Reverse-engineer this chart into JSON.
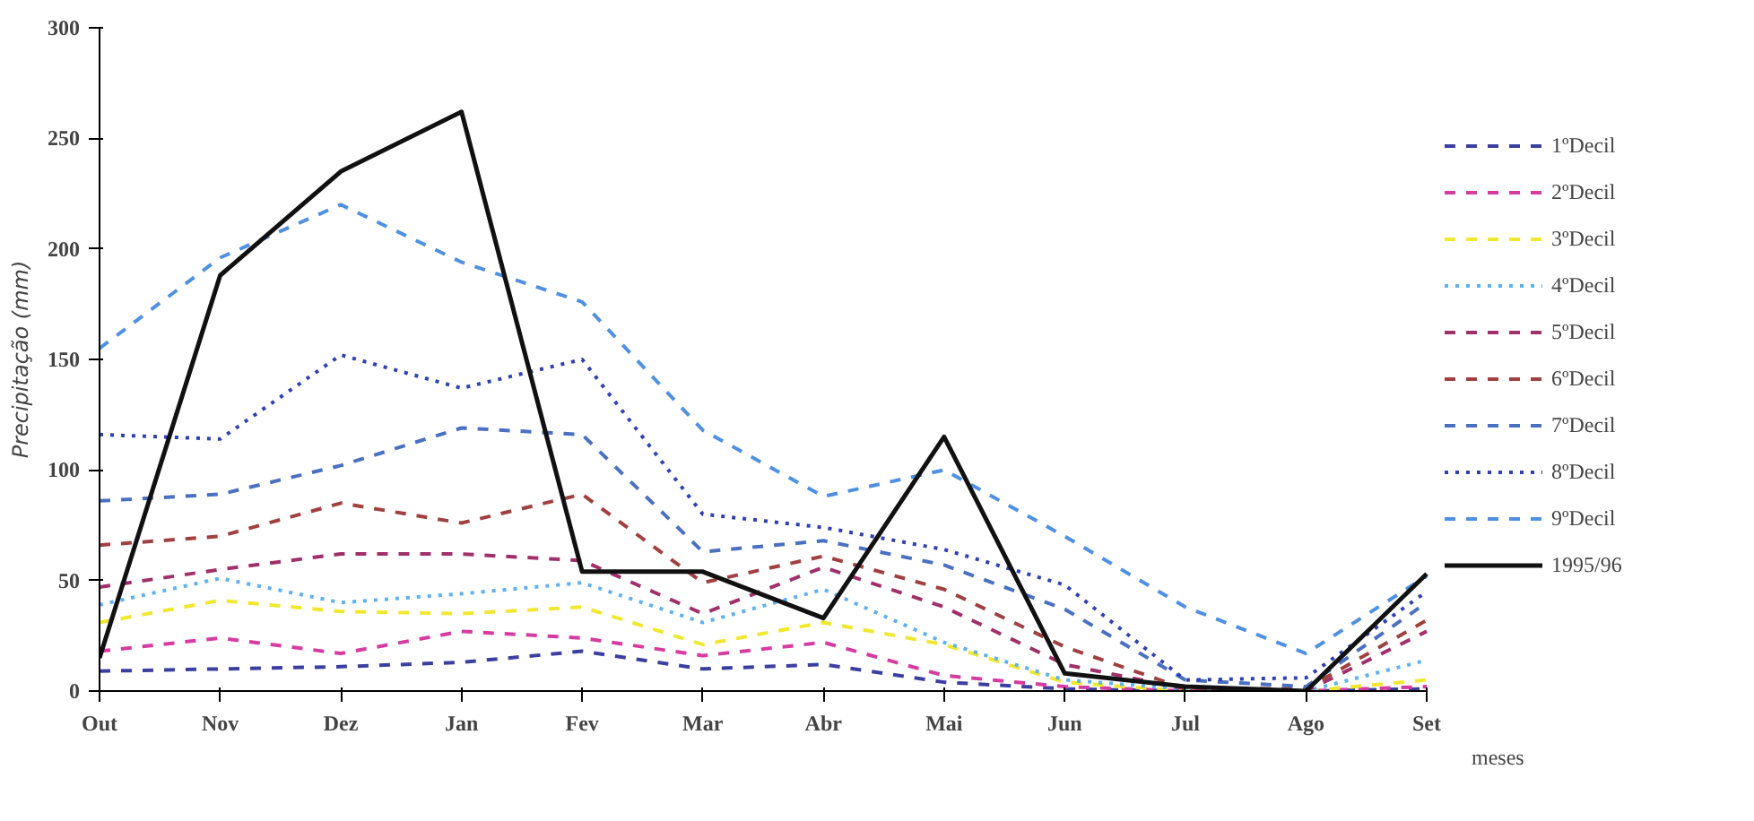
{
  "chart_data": {
    "type": "line",
    "xlabel": "meses",
    "ylabel": "Precipitação (mm)",
    "categories": [
      "Out",
      "Nov",
      "Dez",
      "Jan",
      "Fev",
      "Mar",
      "Abr",
      "Mai",
      "Jun",
      "Jul",
      "Ago",
      "Set"
    ],
    "ylim": [
      0,
      300
    ],
    "yticks": [
      0,
      50,
      100,
      150,
      200,
      250,
      300
    ],
    "grid": false,
    "legend": "right",
    "marker": "none",
    "series": [
      {
        "name": "1ºDecil",
        "color": "#3b3fa0",
        "line_style": "dashed",
        "values": [
          9,
          10,
          11,
          13,
          18,
          10,
          12,
          4,
          1,
          0,
          0,
          1
        ]
      },
      {
        "name": "2ºDecil",
        "color": "#d63ca0",
        "line_style": "dashed",
        "values": [
          18,
          24,
          17,
          27,
          24,
          16,
          22,
          7,
          2,
          0,
          0,
          2
        ]
      },
      {
        "name": "3ºDecil",
        "color": "#f0e830",
        "line_style": "dashed",
        "values": [
          31,
          41,
          36,
          35,
          38,
          21,
          31,
          21,
          4,
          0,
          0,
          5
        ]
      },
      {
        "name": "4ºDecil",
        "color": "#60b0f0",
        "line_style": "dotted",
        "values": [
          39,
          51,
          40,
          44,
          49,
          31,
          46,
          22,
          5,
          1,
          0,
          14
        ]
      },
      {
        "name": "5ºDecil",
        "color": "#a0306a",
        "line_style": "dashed",
        "values": [
          47,
          55,
          62,
          62,
          59,
          35,
          56,
          38,
          12,
          1,
          0,
          27
        ]
      },
      {
        "name": "6ºDecil",
        "color": "#a04040",
        "line_style": "dashed",
        "values": [
          66,
          70,
          85,
          76,
          89,
          49,
          61,
          46,
          20,
          1,
          1,
          32
        ]
      },
      {
        "name": "7ºDecil",
        "color": "#4a70c0",
        "line_style": "dashed",
        "values": [
          86,
          89,
          102,
          119,
          116,
          63,
          68,
          57,
          37,
          5,
          2,
          40
        ]
      },
      {
        "name": "8ºDecil",
        "color": "#3040b0",
        "line_style": "dotted",
        "values": [
          116,
          114,
          152,
          137,
          150,
          80,
          74,
          64,
          48,
          5,
          6,
          45
        ]
      },
      {
        "name": "9ºDecil",
        "color": "#5090e0",
        "line_style": "dashed",
        "values": [
          155,
          196,
          220,
          194,
          176,
          118,
          88,
          100,
          70,
          38,
          17,
          52
        ]
      },
      {
        "name": "1995/96",
        "color": "#111111",
        "line_style": "solid",
        "values": [
          15,
          188,
          235,
          262,
          54,
          54,
          33,
          115,
          8,
          2,
          0,
          53
        ]
      }
    ]
  }
}
